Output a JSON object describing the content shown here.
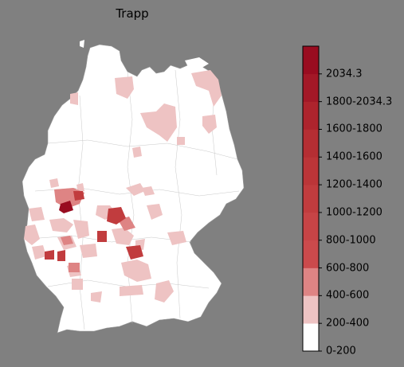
{
  "map": {
    "title": "Trapp",
    "country": "Germany",
    "base_fill": "#ffffff",
    "border_color": "#9a9a9a",
    "background": "#808080"
  },
  "legend": {
    "bins": [
      {
        "label": "0-200",
        "color": "#ffffff"
      },
      {
        "label": "200-400",
        "color": "#eec3c3"
      },
      {
        "label": "400-600",
        "color": "#de8484"
      },
      {
        "label": "600-800",
        "color": "#cb4a4c"
      },
      {
        "label": "800-1000",
        "color": "#c74446"
      },
      {
        "label": "1000-1200",
        "color": "#c13c3e"
      },
      {
        "label": "1200-1400",
        "color": "#bb3538"
      },
      {
        "label": "1400-1600",
        "color": "#b52e33"
      },
      {
        "label": "1600-1800",
        "color": "#ad242d"
      },
      {
        "label": "1800-2034.3",
        "color": "#a31827"
      },
      {
        "label": "2034.3",
        "color": "#990c20"
      }
    ],
    "tick_labels": [
      "0-200",
      "200-400",
      "400-600",
      "600-800",
      "800-1000",
      "1000-1200",
      "1200-1400",
      "1400-1600",
      "1600-1800",
      "1800-2034.3",
      "2034.3"
    ]
  }
}
